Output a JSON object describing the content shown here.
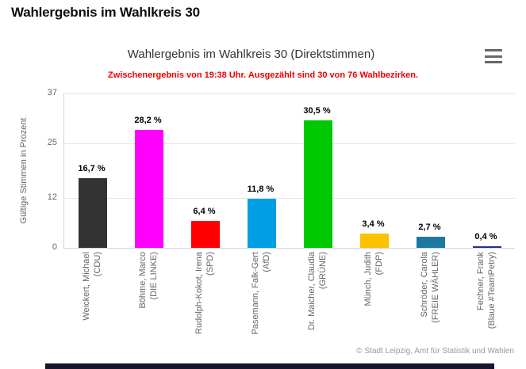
{
  "page": {
    "title": "Wahlergebnis im Wahlkreis 30"
  },
  "chart": {
    "title": "Wahlergebnis im Wahlkreis 30 (Direktstimmen)",
    "subtitle": "Zwischenergebnis von 19:38 Uhr. Ausgezählt sind 30 von 76 Wahlbezirken.",
    "menu_icon": "hamburger-icon",
    "credit": "© Stadt Leipzig, Amt für Statistik und Wahlen"
  },
  "chart_data": {
    "type": "bar",
    "title": "Wahlergebnis im Wahlkreis 30 (Direktstimmen)",
    "subtitle": "Zwischenergebnis von 19:38 Uhr. Ausgezählt sind 30 von 76 Wahlbezirken.",
    "xlabel": "",
    "ylabel": "Gültige Stimmen in Prozent",
    "ylim": [
      0,
      37
    ],
    "yticks": [
      0,
      12,
      25,
      37
    ],
    "grid": true,
    "legend": "none",
    "categories": [
      "Weickert, Michael (CDU)",
      "Böhme, Marco (DIE LINKE)",
      "Rudolph-Kokot, Irena (SPD)",
      "Pasemann, Falk-Gert (AfD)",
      "Dr. Maicher, Claudia (GRÜNE)",
      "Münch, Judith (FDP)",
      "Schröder, Carola (FREIE WÄHLER)",
      "Fechner, Frank (Blaue #TeamPetry)"
    ],
    "values": [
      16.7,
      28.2,
      6.4,
      11.8,
      30.5,
      3.4,
      2.7,
      0.4
    ],
    "points": [
      {
        "candidate": "Weickert, Michael",
        "party": "CDU",
        "party_label": "(CDU)",
        "value": 16.7,
        "label": "16,7 %",
        "color": "#333333"
      },
      {
        "candidate": "Böhme, Marco",
        "party": "DIE LINKE",
        "party_label": "(DIE LINKE)",
        "value": 28.2,
        "label": "28,2 %",
        "color": "#ff00ff"
      },
      {
        "candidate": "Rudolph-Kokot, Irena",
        "party": "SPD",
        "party_label": "(SPD)",
        "value": 6.4,
        "label": "6,4 %",
        "color": "#fe0000"
      },
      {
        "candidate": "Pasemann, Falk-Gert",
        "party": "AfD",
        "party_label": "(AfD)",
        "value": 11.8,
        "label": "11,8 %",
        "color": "#009fe3"
      },
      {
        "candidate": "Dr. Maicher, Claudia",
        "party": "GRÜNE",
        "party_label": "(GRÜNE)",
        "value": 30.5,
        "label": "30,5 %",
        "color": "#00c800"
      },
      {
        "candidate": "Münch, Judith",
        "party": "FDP",
        "party_label": "(FDP)",
        "value": 3.4,
        "label": "3,4 %",
        "color": "#fcc200"
      },
      {
        "candidate": "Schröder, Carola",
        "party": "FREIE WÄHLER",
        "party_label": "(FREIE WÄHLER)",
        "value": 2.7,
        "label": "2,7 %",
        "color": "#19799f"
      },
      {
        "candidate": "Fechner, Frank",
        "party": "Blaue #TeamPetry",
        "party_label": "(Blaue #TeamPetry)",
        "value": 0.4,
        "label": "0,4 %",
        "color": "#2b2e83"
      }
    ],
    "credit": "© Stadt Leipzig, Amt für Statistik und Wahlen"
  }
}
